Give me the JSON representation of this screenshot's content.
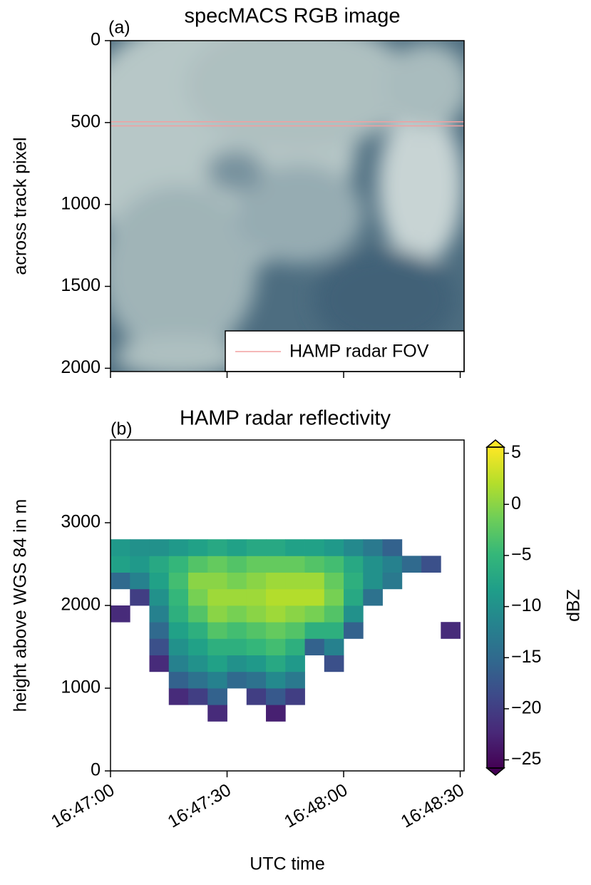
{
  "chart_data": [
    {
      "type": "image",
      "panel_label": "(a)",
      "title": "specMACS RGB image",
      "ylabel": "across track pixel",
      "ylim": [
        2020,
        0
      ],
      "yticks": [
        0,
        500,
        1000,
        1500,
        2000
      ],
      "xlim": [
        "16:47:00",
        "16:48:31"
      ],
      "xticks": [
        "16:47:00",
        "16:47:30",
        "16:48:00",
        "16:48:30"
      ],
      "series": [
        {
          "name": "HAMP radar FOV",
          "color": "#f2a0a0",
          "values": [
            495,
            520
          ]
        }
      ],
      "legend": "lower right"
    },
    {
      "type": "heatmap",
      "panel_label": "(b)",
      "title": "HAMP radar reflectivity",
      "ylabel": "height above WGS 84 in m",
      "xlabel": "UTC time",
      "ylim": [
        0,
        4000
      ],
      "yticks": [
        0,
        1000,
        2000,
        3000
      ],
      "xlim": [
        "16:47:00",
        "16:48:31"
      ],
      "xticks": [
        "16:47:00",
        "16:47:30",
        "16:48:00",
        "16:48:30"
      ],
      "x_edges": [
        "16:47:00",
        "16:47:05",
        "16:47:10",
        "16:47:15",
        "16:47:20",
        "16:47:25",
        "16:47:30",
        "16:47:35",
        "16:47:40",
        "16:47:45",
        "16:47:50",
        "16:47:55",
        "16:48:00",
        "16:48:05",
        "16:48:10",
        "16:48:15",
        "16:48:20",
        "16:48:25",
        "16:48:30"
      ],
      "y_edges": [
        600,
        800,
        1000,
        1200,
        1400,
        1600,
        1800,
        2000,
        2200,
        2400,
        2600,
        2800
      ],
      "z": [
        [
          null,
          null,
          null,
          null,
          null,
          -22,
          null,
          null,
          -23,
          null,
          null,
          null,
          null,
          null,
          null,
          null,
          null,
          null
        ],
        [
          null,
          null,
          null,
          -22,
          -20,
          -16,
          null,
          -20,
          -17,
          -20,
          null,
          null,
          null,
          null,
          null,
          null,
          null,
          null
        ],
        [
          null,
          null,
          null,
          -16,
          -14,
          -12,
          -15,
          -14,
          -11,
          -13,
          null,
          null,
          null,
          null,
          null,
          null,
          null,
          null
        ],
        [
          null,
          null,
          -22,
          -12,
          -10,
          -8,
          -10,
          -9,
          -7,
          -9,
          null,
          -18,
          null,
          null,
          null,
          null,
          null,
          null
        ],
        [
          null,
          null,
          -18,
          -10,
          -8,
          -6,
          -6,
          -5,
          -4,
          -6,
          -16,
          -12,
          null,
          null,
          null,
          null,
          null,
          null
        ],
        [
          null,
          null,
          -15,
          -8,
          -6,
          -3,
          -4,
          -3,
          -2,
          -3,
          -6,
          -6,
          -16,
          null,
          null,
          null,
          null,
          -22
        ],
        [
          -22,
          null,
          -12,
          -6,
          -3,
          0,
          -1,
          0,
          1,
          0,
          -1,
          -3,
          -10,
          null,
          null,
          null,
          null,
          null
        ],
        [
          null,
          -20,
          -10,
          -5,
          -1,
          1,
          1,
          1,
          2,
          2,
          2,
          -1,
          -7,
          -14,
          null,
          null,
          null,
          null
        ],
        [
          -15,
          -12,
          -8,
          -4,
          0,
          0,
          -1,
          0,
          1,
          1,
          1,
          -2,
          -6,
          -10,
          -13,
          null,
          null,
          null
        ],
        [
          -8,
          -9,
          -7,
          -5,
          -3,
          -2,
          -3,
          -2,
          -2,
          -2,
          -3,
          -4,
          -7,
          -10,
          -12,
          -15,
          -18,
          null
        ],
        [
          -9,
          -10,
          -10,
          -9,
          -8,
          -7,
          -8,
          -7,
          -7,
          -8,
          -8,
          -9,
          -11,
          -13,
          -16,
          null,
          null,
          null
        ]
      ],
      "colorbar": {
        "label": "dBZ",
        "cmap": "viridis",
        "clim": [
          -25.8,
          5.6
        ],
        "extend": "both",
        "ticks": [
          {
            "value": -25,
            "label": "−25"
          },
          {
            "value": -20,
            "label": "−20"
          },
          {
            "value": -15,
            "label": "−15"
          },
          {
            "value": -10,
            "label": "−10"
          },
          {
            "value": -5,
            "label": "−5"
          },
          0,
          5
        ]
      }
    }
  ]
}
